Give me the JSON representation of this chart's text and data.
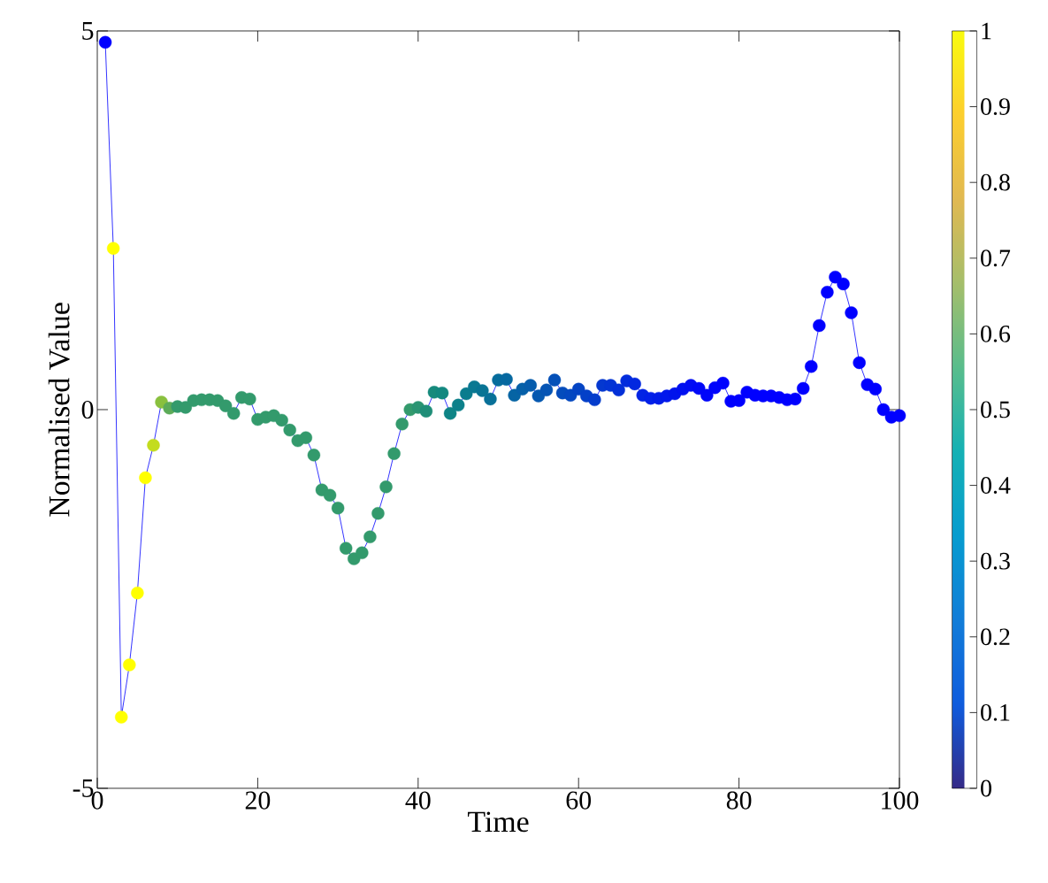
{
  "chart_data": {
    "type": "line",
    "xlabel": "Time",
    "ylabel": "Normalised Value",
    "xlim": [
      0,
      100
    ],
    "xticks": [
      0,
      20,
      40,
      60,
      80,
      100
    ],
    "ylim": [
      -5,
      5
    ],
    "yticks": [
      -5,
      0,
      5
    ],
    "clim": [
      0,
      1
    ],
    "cticks": [
      0,
      0.1,
      0.2,
      0.3,
      0.4,
      0.5,
      0.6,
      0.7,
      0.8,
      0.9,
      1
    ],
    "marker": "circle",
    "line_style": "solid",
    "x": [
      1,
      2,
      3,
      4,
      5,
      6,
      7,
      8,
      9,
      10,
      11,
      12,
      13,
      14,
      15,
      16,
      17,
      18,
      19,
      20,
      21,
      22,
      23,
      24,
      25,
      26,
      27,
      28,
      29,
      30,
      31,
      32,
      33,
      34,
      35,
      36,
      37,
      38,
      39,
      40,
      41,
      42,
      43,
      44,
      45,
      46,
      47,
      48,
      49,
      50,
      51,
      52,
      53,
      54,
      55,
      56,
      57,
      58,
      59,
      60,
      61,
      62,
      63,
      64,
      65,
      66,
      67,
      68,
      69,
      70,
      71,
      72,
      73,
      74,
      75,
      76,
      77,
      78,
      79,
      80,
      81,
      82,
      83,
      84,
      85,
      86,
      87,
      88,
      89,
      90,
      91,
      92,
      93,
      94,
      95,
      96,
      97,
      98,
      99,
      100
    ],
    "series": [
      {
        "color": "#0000ff",
        "values": [
          4.85,
          2.13,
          -4.06,
          -3.37,
          -2.42,
          -0.9,
          -0.47,
          0.1,
          0.02,
          0.04,
          0.03,
          0.12,
          0.13,
          0.13,
          0.12,
          0.05,
          -0.05,
          0.16,
          0.14,
          -0.13,
          -0.1,
          -0.08,
          -0.14,
          -0.27,
          -0.41,
          -0.37,
          -0.6,
          -1.06,
          -1.13,
          -1.3,
          -1.83,
          -1.97,
          -1.89,
          -1.68,
          -1.37,
          -1.02,
          -0.58,
          -0.19,
          0,
          0.03,
          -0.02,
          0.23,
          0.22,
          -0.05,
          0.06,
          0.21,
          0.3,
          0.25,
          0.14,
          0.39,
          0.4,
          0.19,
          0.27,
          0.32,
          0.18,
          0.26,
          0.39,
          0.22,
          0.19,
          0.27,
          0.18,
          0.13,
          0.32,
          0.32,
          0.26,
          0.38,
          0.34,
          0.19,
          0.15,
          0.15,
          0.18,
          0.21,
          0.27,
          0.32,
          0.28,
          0.19,
          0.29,
          0.35,
          0.11,
          0.12,
          0.23,
          0.19,
          0.18,
          0.18,
          0.16,
          0.13,
          0.14,
          0.28,
          0.57,
          1.11,
          1.55,
          1.75,
          1.66,
          1.28,
          0.62,
          0.33,
          0.27,
          0,
          -0.1,
          -0.08
        ],
        "colors": [
          "#0000ff",
          "#ffff00",
          "#ffff00",
          "#ffff00",
          "#ffff00",
          "#ffff00",
          "#c3dc1e",
          "#89c03e",
          "#5cab58",
          "#339a6c",
          "#339a6c",
          "#339a6c",
          "#339a6c",
          "#339a6c",
          "#339a6c",
          "#339a6c",
          "#339a6c",
          "#339a6c",
          "#339a6c",
          "#339a6c",
          "#339a6c",
          "#339a6c",
          "#339a6c",
          "#339a6c",
          "#339a6c",
          "#339a6c",
          "#339a6c",
          "#339a6c",
          "#339a6c",
          "#339a6c",
          "#339a6c",
          "#339a6c",
          "#339a6c",
          "#339a6c",
          "#339a6c",
          "#339a6c",
          "#339a6c",
          "#339a6c",
          "#339a6c",
          "#2a9472",
          "#1f8e78",
          "#168a7c",
          "#128880",
          "#0e8486",
          "#0c808a",
          "#0a7c8e",
          "#0a7892",
          "#087494",
          "#087098",
          "#066c9c",
          "#0668a0",
          "#0664a4",
          "#0660a8",
          "#065cac",
          "#0558b0",
          "#0554b4",
          "#0450b8",
          "#044cbc",
          "#0448c0",
          "#0444c4",
          "#0440c8",
          "#043ccc",
          "#0438d0",
          "#0334d4",
          "#0330d8",
          "#022cdc",
          "#0228e0",
          "#0224e4",
          "#0220e8",
          "#011ce8",
          "#0118ec",
          "#0114ec",
          "#0110f0",
          "#010cf4",
          "#0008f8",
          "#0006fa",
          "#0004fc",
          "#0002fe",
          "#0000ff",
          "#0000ff",
          "#0000ff",
          "#0000ff",
          "#0000ff",
          "#0000ff",
          "#0000ff",
          "#0000ff",
          "#0000ff",
          "#0000ff",
          "#0000ff",
          "#0000ff",
          "#0000ff",
          "#0000ff",
          "#0000ff",
          "#0000ff",
          "#0000ff",
          "#0000ff",
          "#0000ff",
          "#0000ff",
          "#0000ff",
          "#0000ff"
        ]
      }
    ]
  }
}
